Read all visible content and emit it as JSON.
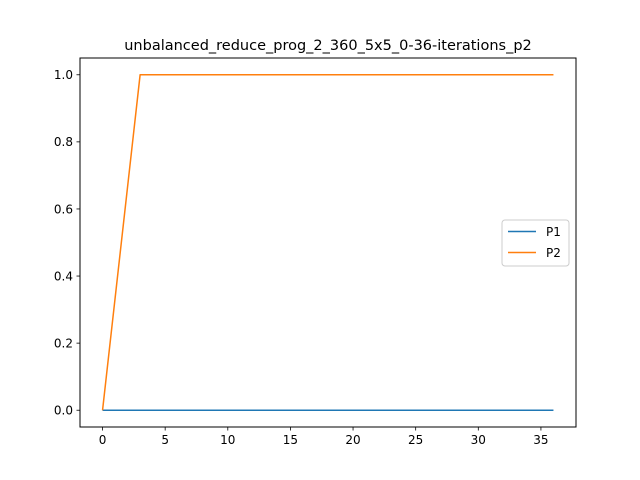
{
  "chart_data": {
    "type": "line",
    "title": "unbalanced_reduce_prog_2_360_5x5_0-36-iterations_p2",
    "xlabel": "",
    "ylabel": "",
    "xlim": [
      -1.8,
      37.8
    ],
    "ylim": [
      -0.05,
      1.05
    ],
    "xticks": [
      0,
      5,
      10,
      15,
      20,
      25,
      30,
      35
    ],
    "yticks": [
      0.0,
      0.2,
      0.4,
      0.6,
      0.8,
      1.0
    ],
    "ytick_labels": [
      "0.0",
      "0.2",
      "0.4",
      "0.6",
      "0.8",
      "1.0"
    ],
    "grid": false,
    "legend_position": "center-right",
    "series": [
      {
        "name": "P1",
        "color": "#1f77b4",
        "x": [
          0,
          36
        ],
        "y": [
          0,
          0
        ]
      },
      {
        "name": "P2",
        "color": "#ff7f0e",
        "x": [
          0,
          3,
          36
        ],
        "y": [
          0,
          1,
          1
        ]
      }
    ]
  }
}
